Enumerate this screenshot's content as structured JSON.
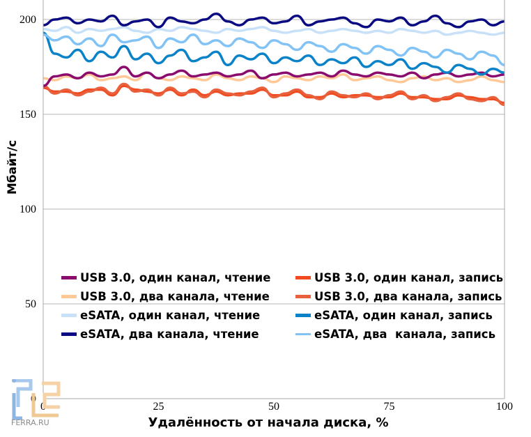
{
  "chart_data": {
    "type": "line",
    "title": "",
    "xlabel": "Удалённость от начала диска, %",
    "ylabel": "Мбайт/с",
    "xlim": [
      0,
      100
    ],
    "ylim": [
      0,
      210
    ],
    "x_ticks": [
      "0",
      "25",
      "50",
      "75",
      "100"
    ],
    "y_ticks": [
      "0",
      "50",
      "100",
      "150",
      "200"
    ],
    "grid": "horizontal",
    "legend_position": "inside-bottom",
    "x_step": 2.5,
    "series": [
      {
        "name": "USB 3.0, один канал, запись",
        "color": "#F04A1E",
        "values": [
          164,
          162,
          162,
          161,
          163,
          163,
          160,
          165,
          163,
          162,
          161,
          163,
          160,
          163,
          160,
          162,
          160,
          161,
          161,
          163,
          160,
          160,
          162,
          159,
          159,
          161,
          159,
          160,
          160,
          159,
          159,
          161,
          159,
          159,
          158,
          158,
          160,
          159,
          158,
          158,
          156
        ]
      },
      {
        "name": "USB 3.0, два канала, запись",
        "color": "#E8603C",
        "values": [
          165,
          161,
          163,
          160,
          162,
          164,
          161,
          166,
          162,
          163,
          160,
          164,
          161,
          162,
          159,
          163,
          161,
          160,
          162,
          164,
          159,
          161,
          163,
          160,
          158,
          162,
          160,
          159,
          161,
          158,
          160,
          162,
          158,
          160,
          157,
          159,
          161,
          158,
          157,
          159,
          155
        ]
      },
      {
        "name": "USB 3.0, два канала, чтение",
        "color": "#FFC896",
        "values": [
          169,
          168,
          170,
          169,
          171,
          168,
          169,
          170,
          168,
          172,
          169,
          168,
          170,
          169,
          168,
          171,
          169,
          168,
          170,
          169,
          167,
          170,
          169,
          168,
          170,
          169,
          171,
          168,
          169,
          170,
          168,
          167,
          169,
          170,
          168,
          169,
          167,
          168,
          170,
          168,
          167
        ]
      },
      {
        "name": "USB 3.0, один канал, чтение",
        "color": "#8B0A6E",
        "values": [
          165,
          170,
          171,
          169,
          172,
          170,
          171,
          175,
          170,
          172,
          169,
          171,
          173,
          170,
          171,
          172,
          170,
          171,
          173,
          169,
          171,
          172,
          170,
          171,
          172,
          170,
          173,
          171,
          170,
          172,
          171,
          170,
          172,
          169,
          171,
          172,
          170,
          171,
          172,
          170,
          171
        ]
      },
      {
        "name": "eSATA, один канал, запись",
        "color": "#0A82C8",
        "values": [
          193,
          182,
          180,
          184,
          178,
          183,
          180,
          186,
          179,
          182,
          177,
          181,
          184,
          178,
          180,
          183,
          176,
          181,
          179,
          182,
          177,
          180,
          178,
          181,
          176,
          179,
          177,
          180,
          175,
          178,
          176,
          179,
          174,
          177,
          175,
          172,
          176,
          174,
          171,
          174,
          172
        ]
      },
      {
        "name": "eSATA, два  канала, запись",
        "color": "#82C3F5",
        "values": [
          192,
          189,
          191,
          187,
          190,
          186,
          192,
          188,
          189,
          191,
          185,
          190,
          188,
          192,
          187,
          189,
          186,
          190,
          188,
          185,
          189,
          187,
          184,
          188,
          186,
          183,
          187,
          185,
          182,
          186,
          184,
          181,
          185,
          183,
          180,
          184,
          182,
          179,
          183,
          181,
          176
        ]
      },
      {
        "name": "eSATA, один канал, чтение",
        "color": "#C8E1F8",
        "values": [
          195,
          194,
          196,
          193,
          195,
          194,
          195,
          196,
          194,
          193,
          195,
          194,
          196,
          195,
          194,
          193,
          195,
          194,
          195,
          196,
          194,
          193,
          194,
          195,
          193,
          194,
          195,
          194,
          193,
          194,
          193,
          195,
          194,
          193,
          194,
          192,
          193,
          194,
          193,
          192,
          193
        ]
      },
      {
        "name": "eSATA, два канала, чтение",
        "color": "#0A0A82",
        "values": [
          197,
          200,
          201,
          198,
          200,
          199,
          202,
          197,
          199,
          200,
          196,
          201,
          199,
          198,
          200,
          203,
          199,
          197,
          200,
          201,
          198,
          199,
          202,
          197,
          199,
          200,
          201,
          198,
          196,
          200,
          199,
          201,
          197,
          199,
          202,
          198,
          196,
          199,
          200,
          197,
          199
        ]
      }
    ]
  },
  "legend": [
    {
      "label": "USB 3.0, один канал, чтение",
      "color": "#8B0A6E"
    },
    {
      "label": "USB 3.0, один канал, запись",
      "color": "#F04A1E"
    },
    {
      "label": "USB 3.0, два канала, чтение",
      "color": "#FFC896"
    },
    {
      "label": "USB 3.0, два канала, запись",
      "color": "#E8603C"
    },
    {
      "label": "eSATA, один канал, чтение",
      "color": "#C8E1F8"
    },
    {
      "label": "eSATA, один канал, запись",
      "color": "#0A82C8"
    },
    {
      "label": "eSATA, два канала, чтение",
      "color": "#0A0A82"
    },
    {
      "label": "eSATA, два  канала, запись",
      "color": "#82C3F5"
    }
  ],
  "watermark": {
    "text": "FERRA.RU"
  }
}
